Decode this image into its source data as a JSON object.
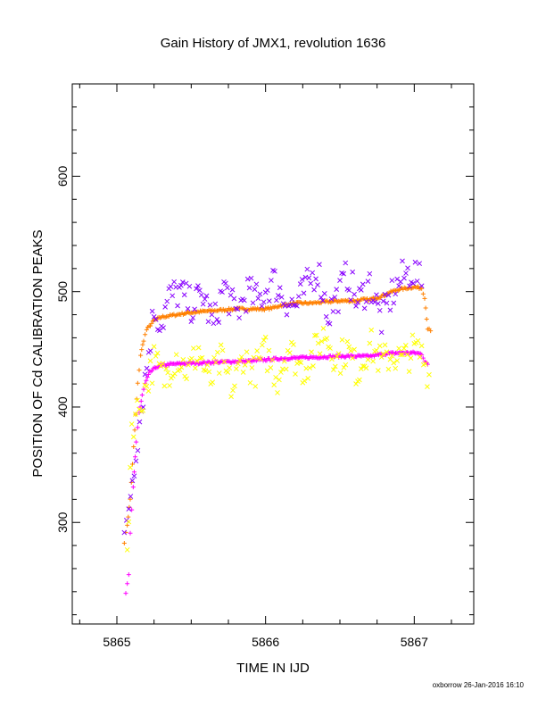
{
  "chart_data": {
    "type": "scatter",
    "title": "Gain History of JMX1, revolution 1636",
    "xlabel": "TIME IN IJD",
    "ylabel": "POSITION OF Cd CALIBRATION PEAKS",
    "xlim": [
      5864.7,
      5867.4
    ],
    "ylim": [
      212,
      680
    ],
    "x_ticks": [
      5865,
      5866,
      5867
    ],
    "x_tick_labels": [
      "5865",
      "5866",
      "5867"
    ],
    "y_ticks": [
      300,
      400,
      500,
      600
    ],
    "y_tick_labels": [
      "300",
      "400",
      "500",
      "600"
    ],
    "grid": false,
    "legend": "none",
    "footer": "oxborrow 26-Jan-2016 16:10",
    "series": [
      {
        "marker": "plus",
        "color": "#ff8000",
        "points": [
          [
            5865.05,
            283
          ],
          [
            5865.07,
            298
          ],
          [
            5865.09,
            320
          ],
          [
            5865.12,
            380
          ],
          [
            5865.14,
            420
          ],
          [
            5865.16,
            445
          ],
          [
            5865.18,
            458
          ],
          [
            5865.2,
            467
          ],
          [
            5865.25,
            475
          ],
          [
            5865.3,
            478
          ],
          [
            5865.4,
            480
          ],
          [
            5865.5,
            482
          ],
          [
            5865.6,
            483
          ],
          [
            5865.7,
            484
          ],
          [
            5865.8,
            485
          ],
          [
            5865.9,
            485
          ],
          [
            5866.0,
            485
          ],
          [
            5866.05,
            486
          ],
          [
            5866.1,
            488
          ],
          [
            5866.2,
            490
          ],
          [
            5866.3,
            490
          ],
          [
            5866.4,
            491
          ],
          [
            5866.5,
            492
          ],
          [
            5866.6,
            492
          ],
          [
            5866.65,
            493
          ],
          [
            5866.7,
            493
          ],
          [
            5866.78,
            496
          ],
          [
            5866.85,
            500
          ],
          [
            5866.9,
            502
          ],
          [
            5866.95,
            503
          ],
          [
            5867.0,
            504
          ],
          [
            5867.05,
            503
          ],
          [
            5867.07,
            495
          ],
          [
            5867.09,
            468
          ],
          [
            5867.11,
            466
          ]
        ]
      },
      {
        "marker": "plus",
        "color": "#ff00ff",
        "points": [
          [
            5865.06,
            238
          ],
          [
            5865.08,
            255
          ],
          [
            5865.09,
            290
          ],
          [
            5865.11,
            330
          ],
          [
            5865.13,
            370
          ],
          [
            5865.15,
            395
          ],
          [
            5865.17,
            410
          ],
          [
            5865.19,
            420
          ],
          [
            5865.22,
            430
          ],
          [
            5865.27,
            435
          ],
          [
            5865.35,
            437
          ],
          [
            5865.5,
            438
          ],
          [
            5865.7,
            439
          ],
          [
            5865.9,
            440
          ],
          [
            5866.0,
            441
          ],
          [
            5866.1,
            442
          ],
          [
            5866.3,
            443
          ],
          [
            5866.5,
            444
          ],
          [
            5866.7,
            444
          ],
          [
            5866.8,
            446
          ],
          [
            5866.9,
            447
          ],
          [
            5867.0,
            447
          ],
          [
            5867.05,
            446
          ],
          [
            5867.07,
            440
          ],
          [
            5867.09,
            437
          ]
        ]
      },
      {
        "marker": "cross",
        "color": "#8800ff",
        "points": [
          [
            5865.05,
            280
          ],
          [
            5865.08,
            315
          ],
          [
            5865.25,
            485
          ],
          [
            5865.3,
            472
          ],
          [
            5865.35,
            495
          ],
          [
            5865.42,
            500
          ],
          [
            5865.5,
            488
          ],
          [
            5865.58,
            497
          ],
          [
            5865.65,
            470
          ],
          [
            5865.72,
            505
          ],
          [
            5865.8,
            480
          ],
          [
            5865.88,
            500
          ],
          [
            5865.95,
            492
          ],
          [
            5866.05,
            510
          ],
          [
            5866.12,
            495
          ],
          [
            5866.2,
            487
          ],
          [
            5866.28,
            505
          ],
          [
            5866.35,
            520
          ],
          [
            5866.42,
            480
          ],
          [
            5866.5,
            500
          ],
          [
            5866.55,
            515
          ],
          [
            5866.62,
            490
          ],
          [
            5866.7,
            508
          ],
          [
            5866.78,
            475
          ],
          [
            5866.85,
            498
          ],
          [
            5866.92,
            512
          ],
          [
            5866.98,
            518
          ],
          [
            5867.02,
            514
          ],
          [
            5867.05,
            505
          ]
        ]
      },
      {
        "marker": "cross",
        "color": "#ffff00",
        "points": [
          [
            5865.07,
            275
          ],
          [
            5865.1,
            385
          ],
          [
            5865.15,
            400
          ],
          [
            5865.25,
            440
          ],
          [
            5865.32,
            425
          ],
          [
            5865.4,
            445
          ],
          [
            5865.48,
            430
          ],
          [
            5865.55,
            450
          ],
          [
            5865.62,
            420
          ],
          [
            5865.7,
            440
          ],
          [
            5865.78,
            415
          ],
          [
            5865.85,
            445
          ],
          [
            5865.92,
            430
          ],
          [
            5866.0,
            448
          ],
          [
            5866.08,
            425
          ],
          [
            5866.15,
            452
          ],
          [
            5866.25,
            432
          ],
          [
            5866.32,
            445
          ],
          [
            5866.4,
            465
          ],
          [
            5866.48,
            440
          ],
          [
            5866.55,
            450
          ],
          [
            5866.62,
            430
          ],
          [
            5866.7,
            455
          ],
          [
            5866.78,
            438
          ],
          [
            5866.85,
            446
          ],
          [
            5866.92,
            440
          ],
          [
            5867.0,
            450
          ],
          [
            5867.05,
            445
          ],
          [
            5867.1,
            428
          ]
        ]
      }
    ]
  }
}
